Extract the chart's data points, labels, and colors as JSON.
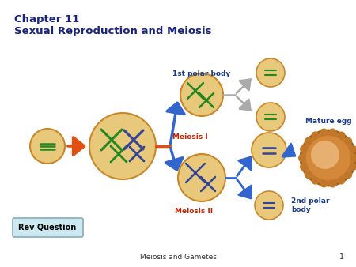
{
  "title_line1": "Chapter 11",
  "title_line2": "Sexual Reproduction and Meiosis",
  "title_color": "#1a237e",
  "bg_color": "#ffffff",
  "footer_text": "Meiosis and Gametes",
  "footer_number": "1",
  "rev_button_text": "Rev Question",
  "meiosis1_label": "Meiosis I",
  "meiosis2_label": "Meiosis II",
  "polar1_label": "1st polar body",
  "mature_egg_label": "Mature egg",
  "polar2_label": "2nd polar\nbody",
  "cell_fill": "#e8c87a",
  "cell_edge": "#c8882a",
  "mature_egg_outer": "#d4883a",
  "mature_egg_inner": "#e8b070",
  "label_red": "#cc2200",
  "label_blue": "#1a3a8a",
  "arrow_orange": "#e05010",
  "arrow_blue": "#3366cc",
  "arrow_gray": "#aaaaaa",
  "chrom_green": "#228822",
  "chrom_blue": "#334499",
  "rev_btn_bg": "#cce8f0",
  "rev_btn_edge": "#88aabb"
}
